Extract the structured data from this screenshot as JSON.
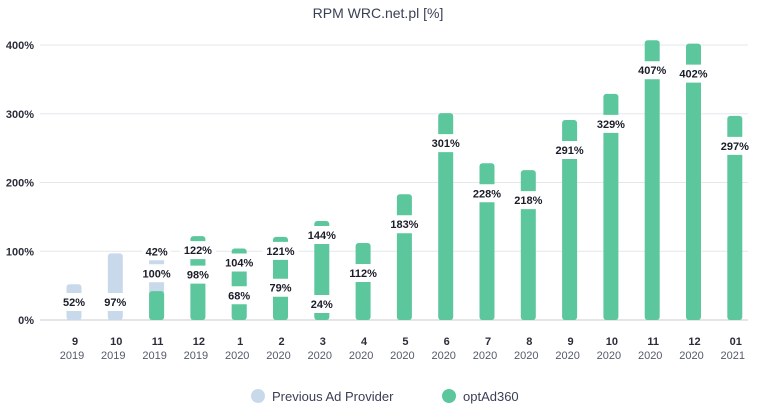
{
  "chart_data": {
    "type": "bar",
    "title": "RPM WRC.net.pl [%]",
    "xlabel": "",
    "ylabel": "",
    "ylim": [
      0,
      400
    ],
    "yticks": [
      0,
      100,
      200,
      300,
      400
    ],
    "ytick_labels": [
      "0%",
      "100%",
      "200%",
      "300%",
      "400%"
    ],
    "grid": true,
    "legend_position": "bottom-center",
    "categories": [
      {
        "month": "9",
        "year": "2019"
      },
      {
        "month": "10",
        "year": "2019"
      },
      {
        "month": "11",
        "year": "2019"
      },
      {
        "month": "12",
        "year": "2019"
      },
      {
        "month": "1",
        "year": "2020"
      },
      {
        "month": "2",
        "year": "2020"
      },
      {
        "month": "3",
        "year": "2020"
      },
      {
        "month": "4",
        "year": "2020"
      },
      {
        "month": "5",
        "year": "2020"
      },
      {
        "month": "6",
        "year": "2020"
      },
      {
        "month": "7",
        "year": "2020"
      },
      {
        "month": "8",
        "year": "2020"
      },
      {
        "month": "9",
        "year": "2020"
      },
      {
        "month": "10",
        "year": "2020"
      },
      {
        "month": "11",
        "year": "2020"
      },
      {
        "month": "12",
        "year": "2020"
      },
      {
        "month": "01",
        "year": "2021"
      }
    ],
    "series": [
      {
        "name": "Previous Ad Provider",
        "color": "#c9d9ec",
        "values": [
          52,
          97,
          100,
          98,
          68,
          79,
          24,
          null,
          null,
          null,
          null,
          null,
          null,
          null,
          null,
          null,
          null
        ]
      },
      {
        "name": "optAd360",
        "color": "#5cc79c",
        "values": [
          null,
          null,
          42,
          122,
          104,
          121,
          144,
          112,
          183,
          301,
          228,
          218,
          291,
          329,
          407,
          402,
          297
        ]
      }
    ],
    "data_labels": [
      "52%",
      "97%",
      "100%",
      "98%",
      "68%",
      "79%",
      "24%",
      "112%",
      "183%",
      "301%",
      "228%",
      "218%",
      "291%",
      "329%",
      "407%",
      "402%",
      "297%"
    ],
    "optad_labels": [
      null,
      null,
      "42%",
      "122%",
      "104%",
      "121%",
      "144%",
      null,
      null,
      null,
      null,
      null,
      null,
      null,
      null,
      null,
      null
    ]
  }
}
